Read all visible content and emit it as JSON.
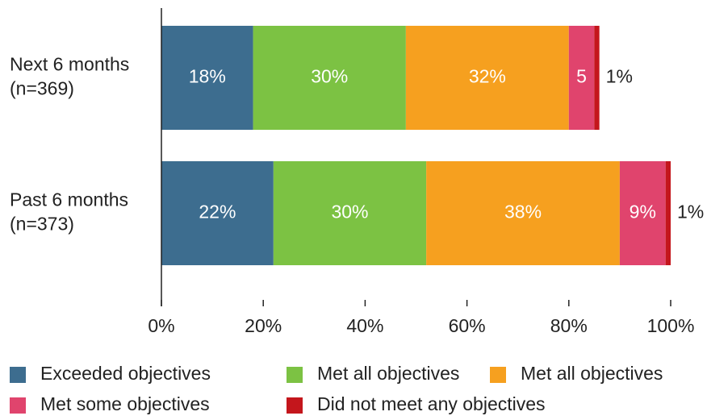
{
  "chart_data": {
    "type": "stacked-bar-horizontal",
    "categories": [
      "Next 6 months\n(n=369)",
      "Past 6 months\n(n=373)"
    ],
    "series": [
      {
        "name": "Exceeded objectives",
        "color": "#3d6d8f",
        "values": [
          18,
          22
        ],
        "value_labels": [
          "18%",
          "22%"
        ]
      },
      {
        "name": "Met all objectives",
        "color": "#7cc243",
        "values": [
          30,
          30
        ],
        "value_labels": [
          "30%",
          "30%"
        ]
      },
      {
        "name": "Met all objectives",
        "color": "#f6a01f",
        "values": [
          32,
          38
        ],
        "value_labels": [
          "32%",
          "38%"
        ]
      },
      {
        "name": "Met some objectives",
        "color": "#e0446d",
        "values": [
          5,
          9
        ],
        "value_labels": [
          "5",
          "9%"
        ]
      },
      {
        "name": "Did not meet any objectives",
        "color": "#c4161c",
        "values": [
          1,
          1
        ],
        "value_labels": [
          "1%",
          "1%"
        ]
      }
    ],
    "xlim": [
      0,
      100
    ],
    "xticks": [
      {
        "value": 0,
        "label": "0%"
      },
      {
        "value": 20,
        "label": "20%"
      },
      {
        "value": 40,
        "label": "40%"
      },
      {
        "value": 60,
        "label": "60%"
      },
      {
        "value": 80,
        "label": "80%"
      },
      {
        "value": 100,
        "label": "100%"
      }
    ],
    "legend": "bottom"
  }
}
